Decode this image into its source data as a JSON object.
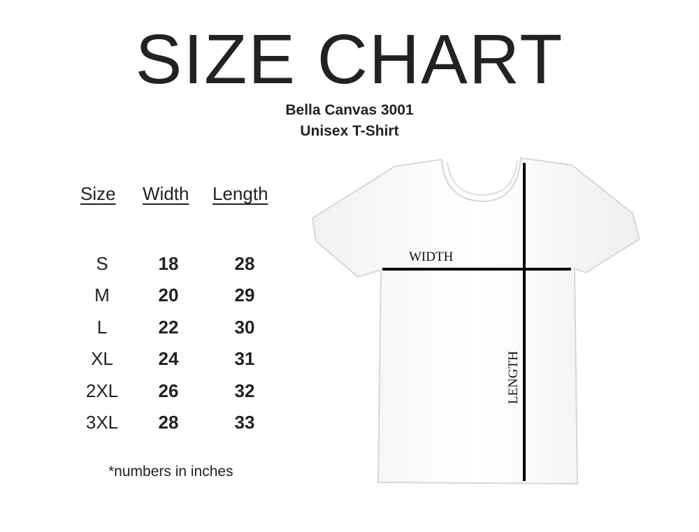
{
  "title": "SIZE CHART",
  "subtitle": "Bella Canvas 3001",
  "subtitle2": "Unisex T-Shirt",
  "table": {
    "headers": [
      "Size ",
      "Width",
      "Length"
    ],
    "rows": [
      [
        "S",
        "18",
        "28"
      ],
      [
        "M",
        "20",
        "29"
      ],
      [
        "L",
        "22",
        "30"
      ],
      [
        "XL",
        "24",
        "31"
      ],
      [
        "2XL",
        "26",
        "32"
      ],
      [
        "3XL",
        "28",
        "33"
      ]
    ]
  },
  "note": "*numbers in inches",
  "diagram": {
    "width_label": "WIDTH",
    "length_label": "LENGTH"
  }
}
